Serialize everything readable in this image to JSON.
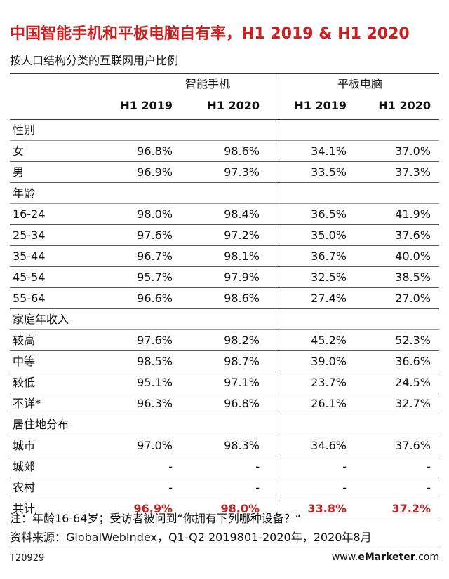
{
  "title": "中国智能手机和平板电脑自有率，H1 2019 & H1 2020",
  "subtitle": "按人口结构分类的互联网用户比例",
  "groups": [
    "智能手机",
    "平板电脑"
  ],
  "columns": [
    "H1 2019",
    "H1 2020",
    "H1 2019",
    "H1 2020"
  ],
  "chart_data": {
    "type": "table",
    "rows": [
      {
        "label": "性别",
        "section": true
      },
      {
        "label": "女",
        "values": [
          "96.8%",
          "98.6%",
          "34.1%",
          "37.0%"
        ]
      },
      {
        "label": "男",
        "values": [
          "96.9%",
          "97.3%",
          "33.5%",
          "37.3%"
        ]
      },
      {
        "label": "年龄",
        "section": true
      },
      {
        "label": "16-24",
        "values": [
          "98.0%",
          "98.4%",
          "36.5%",
          "41.9%"
        ]
      },
      {
        "label": "25-34",
        "values": [
          "97.6%",
          "97.2%",
          "35.0%",
          "37.6%"
        ]
      },
      {
        "label": "35-44",
        "values": [
          "96.7%",
          "98.1%",
          "36.7%",
          "40.0%"
        ]
      },
      {
        "label": "45-54",
        "values": [
          "95.7%",
          "97.9%",
          "32.5%",
          "38.5%"
        ]
      },
      {
        "label": "55-64",
        "values": [
          "96.6%",
          "98.6%",
          "27.4%",
          "27.0%"
        ]
      },
      {
        "label": "家庭年收入",
        "section": true
      },
      {
        "label": "较高",
        "values": [
          "97.6%",
          "98.2%",
          "45.2%",
          "52.3%"
        ]
      },
      {
        "label": "中等",
        "values": [
          "98.5%",
          "98.7%",
          "39.0%",
          "36.6%"
        ]
      },
      {
        "label": "较低",
        "values": [
          "95.1%",
          "97.1%",
          "23.7%",
          "24.5%"
        ]
      },
      {
        "label": "不详*",
        "values": [
          "96.3%",
          "96.8%",
          "26.1%",
          "32.7%"
        ]
      },
      {
        "label": "居住地分布",
        "section": true
      },
      {
        "label": "城市",
        "values": [
          "97.0%",
          "98.3%",
          "34.6%",
          "37.6%"
        ]
      },
      {
        "label": "城郊",
        "values": [
          "-",
          "-",
          "-",
          "-"
        ]
      },
      {
        "label": "农村",
        "values": [
          "-",
          "-",
          "-",
          "-"
        ]
      },
      {
        "label": "共计",
        "total": true,
        "values": [
          "96.9%",
          "98.0%",
          "33.8%",
          "37.2%"
        ]
      }
    ]
  },
  "note": "注：年龄16-64岁；受访者被问到“你拥有下列哪种设备？“",
  "source": "资料来源：GlobalWebIndex，Q1-Q2 2019801-2020年，2020年8月",
  "code": "T20929",
  "brand": {
    "prefix": "www.",
    "bold": "eMarketer",
    "suffix": ".com"
  },
  "colors": {
    "accent": "#cc1f1f"
  }
}
